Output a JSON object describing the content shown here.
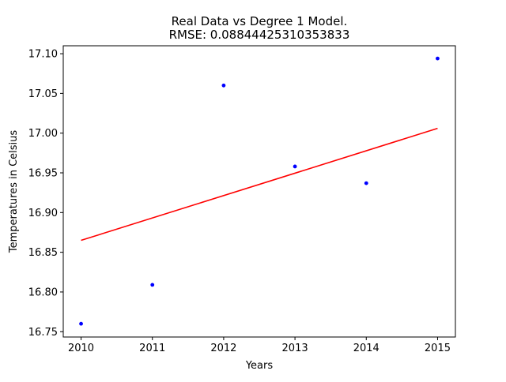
{
  "chart_data": {
    "type": "scatter",
    "title": "Real Data vs Degree 1 Model.",
    "subtitle": "RMSE: 0.08844425310353833",
    "xlabel": "Years",
    "ylabel": "Temperatures in Celsius",
    "xlim": [
      2009.75,
      2015.25
    ],
    "ylim": [
      16.7433,
      17.11
    ],
    "x_ticks": [
      "2010",
      "2011",
      "2012",
      "2013",
      "2014",
      "2015"
    ],
    "y_ticks": [
      "16.75",
      "16.80",
      "16.85",
      "16.90",
      "16.95",
      "17.00",
      "17.05",
      "17.10"
    ],
    "grid": false,
    "series": [
      {
        "kind": "points",
        "color": "#0000ff",
        "x": [
          2010,
          2011,
          2012,
          2013,
          2014,
          2015
        ],
        "y": [
          16.76,
          16.809,
          17.06,
          16.958,
          16.937,
          17.094
        ]
      },
      {
        "kind": "line",
        "color": "#ff0000",
        "x": [
          2010,
          2015
        ],
        "y": [
          16.865,
          17.006
        ]
      }
    ]
  }
}
